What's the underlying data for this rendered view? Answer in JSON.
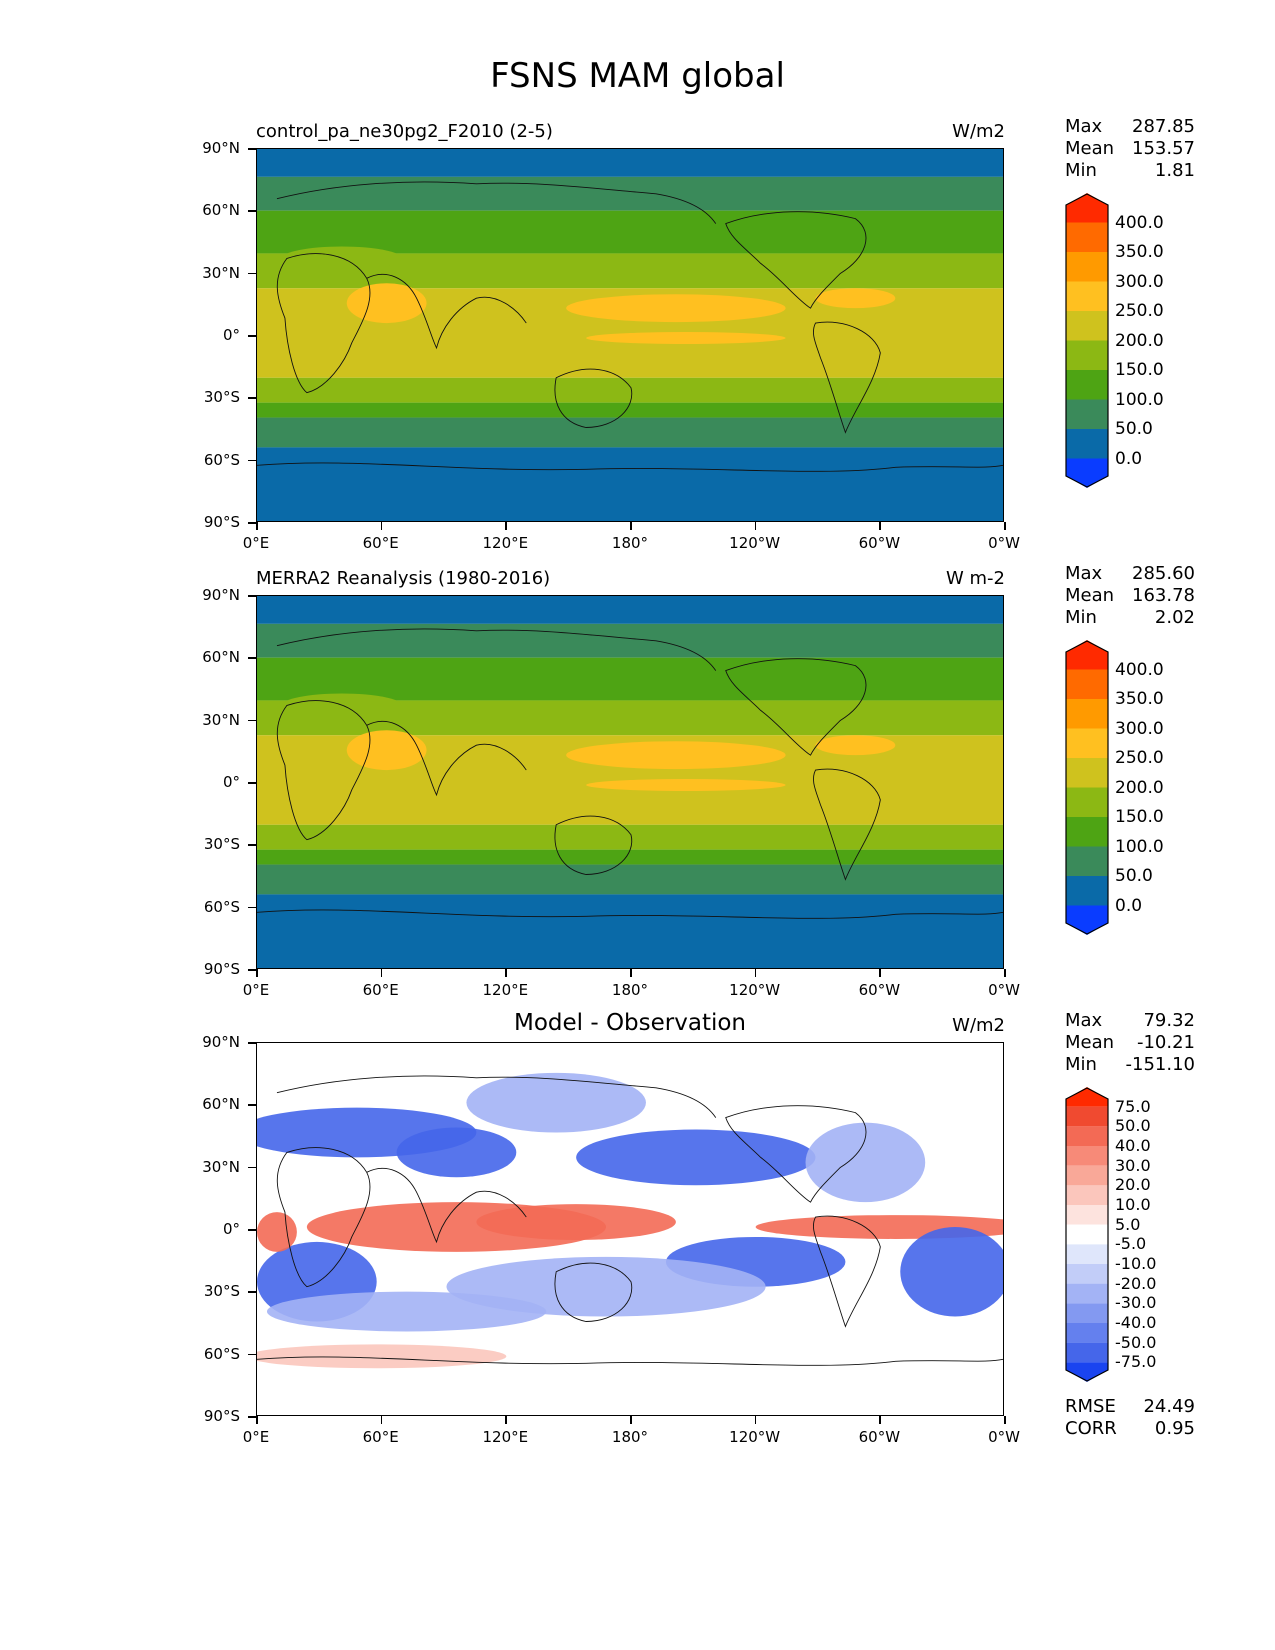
{
  "figure_title": "FSNS MAM global",
  "xticks": [
    "0°E",
    "60°E",
    "120°E",
    "180°",
    "120°W",
    "60°W",
    "0°W"
  ],
  "yticks": [
    "90°N",
    "60°N",
    "30°N",
    "0°",
    "30°S",
    "60°S",
    "90°S"
  ],
  "panels": [
    {
      "title": "control_pa_ne30pg2_F2010 (2-5)",
      "title_style": "left",
      "units": "W/m2",
      "stats": [
        {
          "label": "Max",
          "value": "287.85"
        },
        {
          "label": "Mean",
          "value": "153.57"
        },
        {
          "label": "Min",
          "value": "1.81"
        }
      ],
      "colorbar": {
        "labels": [
          "400.0",
          "350.0",
          "300.0",
          "250.0",
          "200.0",
          "150.0",
          "100.0",
          "50.0",
          "0.0"
        ],
        "colors": [
          "#ff2a00",
          "#ff6a00",
          "#ff9a00",
          "#ffc020",
          "#cfc21e",
          "#8cb814",
          "#4ea414",
          "#3a8a5a",
          "#0a6aa8",
          "#0a3cff"
        ]
      }
    },
    {
      "title": "MERRA2 Reanalysis (1980-2016)",
      "title_style": "left",
      "units": "W m-2",
      "stats": [
        {
          "label": "Max",
          "value": "285.60"
        },
        {
          "label": "Mean",
          "value": "163.78"
        },
        {
          "label": "Min",
          "value": "2.02"
        }
      ],
      "colorbar": {
        "labels": [
          "400.0",
          "350.0",
          "300.0",
          "250.0",
          "200.0",
          "150.0",
          "100.0",
          "50.0",
          "0.0"
        ],
        "colors": [
          "#ff2a00",
          "#ff6a00",
          "#ff9a00",
          "#ffc020",
          "#cfc21e",
          "#8cb814",
          "#4ea414",
          "#3a8a5a",
          "#0a6aa8",
          "#0a3cff"
        ]
      }
    },
    {
      "title": "Model - Observation",
      "title_style": "center",
      "units": "W/m2",
      "stats": [
        {
          "label": "Max",
          "value": "79.32"
        },
        {
          "label": "Mean",
          "value": "-10.21"
        },
        {
          "label": "Min",
          "value": "-151.10"
        }
      ],
      "colorbar": {
        "labels": [
          "75.0",
          "50.0",
          "40.0",
          "30.0",
          "20.0",
          "10.0",
          "5.0",
          "-5.0",
          "-10.0",
          "-20.0",
          "-30.0",
          "-40.0",
          "-50.0",
          "-75.0"
        ],
        "colors": [
          "#ff2a00",
          "#f04a30",
          "#f36a55",
          "#f78a78",
          "#f9a898",
          "#fbc6bc",
          "#fde3de",
          "#ffffff",
          "#dfe6fb",
          "#c2cdf8",
          "#a3b3f5",
          "#8399f1",
          "#6480ee",
          "#4566ea",
          "#1a44f0"
        ]
      },
      "rmse": {
        "label": "RMSE",
        "value": "24.49"
      },
      "corr": {
        "label": "CORR",
        "value": "0.95"
      }
    }
  ],
  "map_colors": {
    "polar": "#0a6aa8",
    "subpolar": "#3a8a5a",
    "midlat": "#4ea414",
    "subtrop": "#8cb814",
    "tropics": "#cfc21e",
    "high": "#ffc020",
    "diff_pos": "#f36a55",
    "diff_neg": "#4566ea",
    "diff_neg_light": "#a3b3f5",
    "diff_pos_light": "#fbc6bc"
  }
}
